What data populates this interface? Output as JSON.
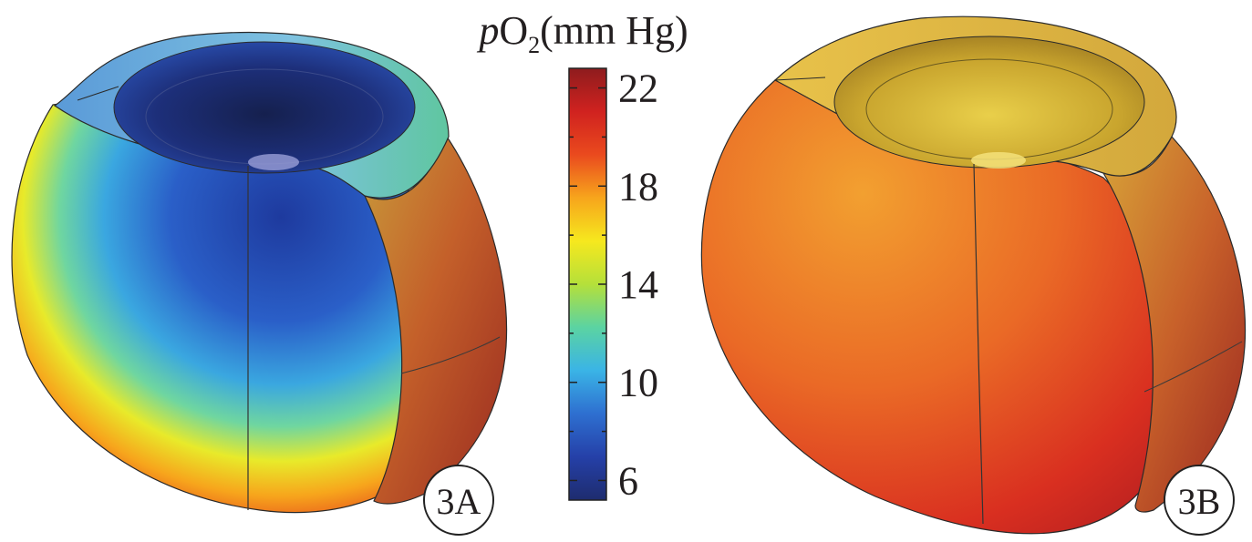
{
  "colorbar": {
    "title_italic": "p",
    "title_base": "O",
    "title_sub": "2",
    "title_unit": "(mm Hg)",
    "ticks": [
      {
        "value": 22,
        "label": "22"
      },
      {
        "value": 18,
        "label": "18"
      },
      {
        "value": 14,
        "label": "14"
      },
      {
        "value": 10,
        "label": "10"
      },
      {
        "value": 6,
        "label": "6"
      }
    ],
    "min": 5.2,
    "max": 22.8,
    "colormap": [
      "#1e2c6e",
      "#2540a8",
      "#2e6fd0",
      "#3ab4e6",
      "#5bd3a2",
      "#b5e03a",
      "#f6e81e",
      "#f7a51c",
      "#ea4a1e",
      "#d0221f",
      "#8e1c1e"
    ]
  },
  "panels": [
    {
      "label": "3A"
    },
    {
      "label": "3B"
    }
  ]
}
